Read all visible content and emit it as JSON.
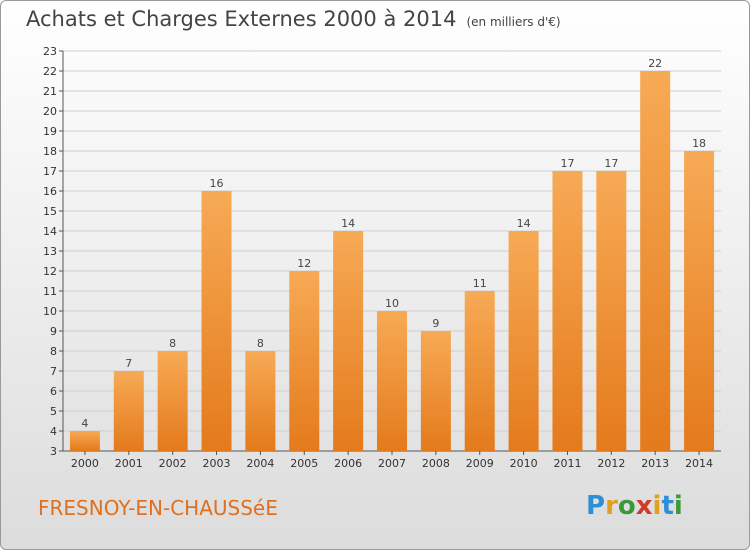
{
  "header": {
    "title": "Achats et Charges Externes 2000 à 2014",
    "unit": "(en milliers d'€)"
  },
  "footer": {
    "town": "FRESNOY-EN-CHAUSSéE",
    "logo_letters": [
      "P",
      "r",
      "o",
      "x",
      "i",
      "t",
      "i"
    ],
    "logo_colors": [
      "#2e8fd6",
      "#e0a020",
      "#3a9a3a",
      "#d23a2a",
      "#e0a020",
      "#2e8fd6",
      "#3a9a3a"
    ]
  },
  "chart_data": {
    "type": "bar",
    "title": "Achats et Charges Externes 2000 à 2014",
    "subtitle": "(en milliers d'€)",
    "xlabel": "",
    "ylabel": "",
    "categories": [
      "2000",
      "2001",
      "2002",
      "2003",
      "2004",
      "2005",
      "2006",
      "2007",
      "2008",
      "2009",
      "2010",
      "2011",
      "2012",
      "2013",
      "2014"
    ],
    "values": [
      4,
      7,
      8,
      16,
      8,
      12,
      14,
      10,
      9,
      11,
      14,
      17,
      17,
      22,
      18
    ],
    "ylim": [
      3,
      23
    ],
    "yticks": [
      3,
      4,
      5,
      6,
      7,
      8,
      9,
      10,
      11,
      12,
      13,
      14,
      15,
      16,
      17,
      18,
      19,
      20,
      21,
      22,
      23
    ],
    "grid": true,
    "bar_color": "#f08a2a",
    "legend": "none"
  }
}
